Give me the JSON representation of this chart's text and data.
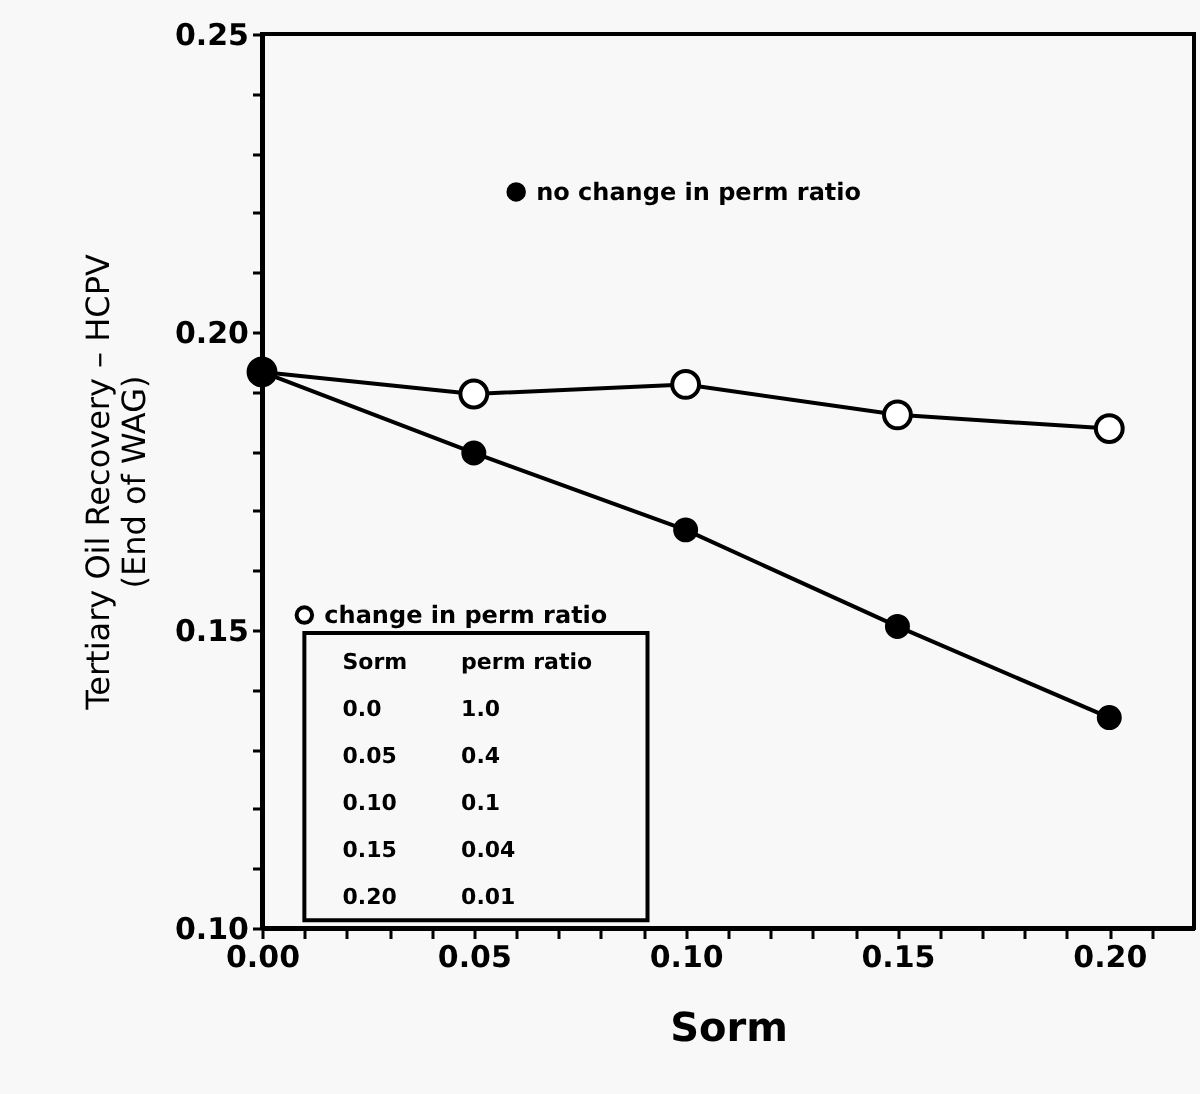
{
  "chart_data": {
    "type": "line",
    "xlabel": "Sorm",
    "ylabel": "Tertiary Oil Recovery – HCPV\n(End of WAG)",
    "x": [
      0.0,
      0.05,
      0.1,
      0.15,
      0.2
    ],
    "series": [
      {
        "name": "no change in perm ratio",
        "color": "#000000",
        "values": [
          0.1933,
          0.1797,
          0.1668,
          0.1506,
          0.1353
        ]
      },
      {
        "name": "change in perm ratio",
        "color": "#000000",
        "values": [
          0.1933,
          0.1896,
          0.1912,
          0.1861,
          0.1838
        ]
      }
    ],
    "xlim": [
      0,
      0.22
    ],
    "ylim": [
      0.1,
      0.25
    ],
    "xticks": [
      {
        "value": 0.0,
        "label": "0.00"
      },
      {
        "value": 0.01,
        "label": null
      },
      {
        "value": 0.02,
        "label": null
      },
      {
        "value": 0.03,
        "label": null
      },
      {
        "value": 0.04,
        "label": null
      },
      {
        "value": 0.05,
        "label": "0.05"
      },
      {
        "value": 0.06,
        "label": null
      },
      {
        "value": 0.07,
        "label": null
      },
      {
        "value": 0.08,
        "label": null
      },
      {
        "value": 0.09,
        "label": null
      },
      {
        "value": 0.1,
        "label": "0.10"
      },
      {
        "value": 0.11,
        "label": null
      },
      {
        "value": 0.12,
        "label": null
      },
      {
        "value": 0.13,
        "label": null
      },
      {
        "value": 0.14,
        "label": null
      },
      {
        "value": 0.15,
        "label": "0.15"
      },
      {
        "value": 0.16,
        "label": null
      },
      {
        "value": 0.17,
        "label": null
      },
      {
        "value": 0.18,
        "label": null
      },
      {
        "value": 0.19,
        "label": null
      },
      {
        "value": 0.2,
        "label": "0.20"
      },
      {
        "value": 0.21,
        "label": null
      }
    ],
    "yticks": [
      {
        "value": 0.1,
        "label": "0.10"
      },
      {
        "value": 0.11,
        "label": null
      },
      {
        "value": 0.12,
        "label": null
      },
      {
        "value": 0.13,
        "label": null
      },
      {
        "value": 0.14,
        "label": null
      },
      {
        "value": 0.15,
        "label": "0.15"
      },
      {
        "value": 0.16,
        "label": null
      },
      {
        "value": 0.17,
        "label": null
      },
      {
        "value": 0.18,
        "label": null
      },
      {
        "value": 0.19,
        "label": null
      },
      {
        "value": 0.2,
        "label": "0.20"
      },
      {
        "value": 0.21,
        "label": null
      },
      {
        "value": 0.22,
        "label": null
      },
      {
        "value": 0.23,
        "label": null
      },
      {
        "value": 0.24,
        "label": null
      },
      {
        "value": 0.25,
        "label": "0.25"
      }
    ],
    "annotations": [
      "Sorm",
      "perm ratio",
      "0.0",
      "1.0",
      "0.05",
      "0.4",
      "0.10",
      "0.1",
      "0.15",
      "0.04",
      "0.20",
      "0.01"
    ],
    "marker": "circle",
    "line_style": "solid",
    "grid": false,
    "legend": "left"
  }
}
